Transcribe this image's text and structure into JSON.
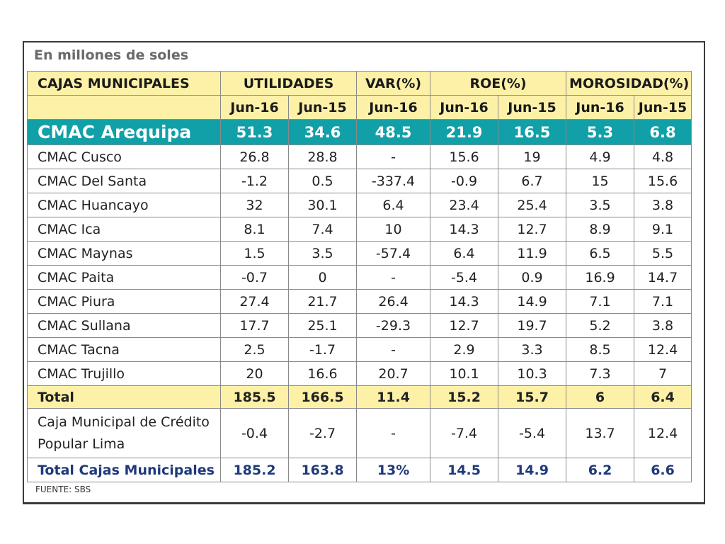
{
  "subtitle": "En millones de soles",
  "header": {
    "entity": "CAJAS MUNICIPALES",
    "utilidades": "UTILIDADES",
    "var": "VAR(%)",
    "roe": "ROE(%)",
    "morosidad": "MOROSIDAD(%)",
    "periods": [
      "Jun-16",
      "Jun-15",
      "Jun-16",
      "Jun-16",
      "Jun-15",
      "Jun-16",
      "Jun-15"
    ]
  },
  "highlight": {
    "name": "CMAC Arequipa",
    "values": [
      "51.3",
      "34.6",
      "48.5",
      "21.9",
      "16.5",
      "5.3",
      "6.8"
    ]
  },
  "rows": [
    {
      "name": "CMAC Cusco",
      "values": [
        "26.8",
        "28.8",
        "-",
        "15.6",
        "19",
        "4.9",
        "4.8"
      ]
    },
    {
      "name": "CMAC Del Santa",
      "values": [
        "-1.2",
        "0.5",
        "-337.4",
        "-0.9",
        "6.7",
        "15",
        "15.6"
      ]
    },
    {
      "name": "CMAC Huancayo",
      "values": [
        "32",
        "30.1",
        "6.4",
        "23.4",
        "25.4",
        "3.5",
        "3.8"
      ]
    },
    {
      "name": "CMAC Ica",
      "values": [
        "8.1",
        "7.4",
        "10",
        "14.3",
        "12.7",
        "8.9",
        "9.1"
      ]
    },
    {
      "name": "CMAC Maynas",
      "values": [
        "1.5",
        "3.5",
        "-57.4",
        "6.4",
        "11.9",
        "6.5",
        "5.5"
      ]
    },
    {
      "name": "CMAC Paita",
      "values": [
        "-0.7",
        "0",
        "-",
        "-5.4",
        "0.9",
        "16.9",
        "14.7"
      ]
    },
    {
      "name": "CMAC Piura",
      "values": [
        "27.4",
        "21.7",
        "26.4",
        "14.3",
        "14.9",
        "7.1",
        "7.1"
      ]
    },
    {
      "name": "CMAC Sullana",
      "values": [
        "17.7",
        "25.1",
        "-29.3",
        "12.7",
        "19.7",
        "5.2",
        "3.8"
      ]
    },
    {
      "name": "CMAC Tacna",
      "values": [
        "2.5",
        "-1.7",
        "-",
        "2.9",
        "3.3",
        "8.5",
        "12.4"
      ]
    },
    {
      "name": "CMAC Trujillo",
      "values": [
        "20",
        "16.6",
        "20.7",
        "10.1",
        "10.3",
        "7.3",
        "7"
      ]
    }
  ],
  "total": {
    "name": "Total",
    "values": [
      "185.5",
      "166.5",
      "11.4",
      "15.2",
      "15.7",
      "6",
      "6.4"
    ]
  },
  "lima": {
    "name": "Caja Municipal de Crédito Popular Lima",
    "values": [
      "-0.4",
      "-2.7",
      "-",
      "-7.4",
      "-5.4",
      "13.7",
      "12.4"
    ]
  },
  "grand_total": {
    "name": "Total Cajas Municipales",
    "values": [
      "185.2",
      "163.8",
      "13%",
      "14.5",
      "14.9",
      "6.2",
      "6.6"
    ]
  },
  "footer": "FUENTE: SBS",
  "colors": {
    "header_bg": "#fdf1a8",
    "highlight_bg": "#12a0a8",
    "grand_total_text": "#1f3a7a"
  }
}
